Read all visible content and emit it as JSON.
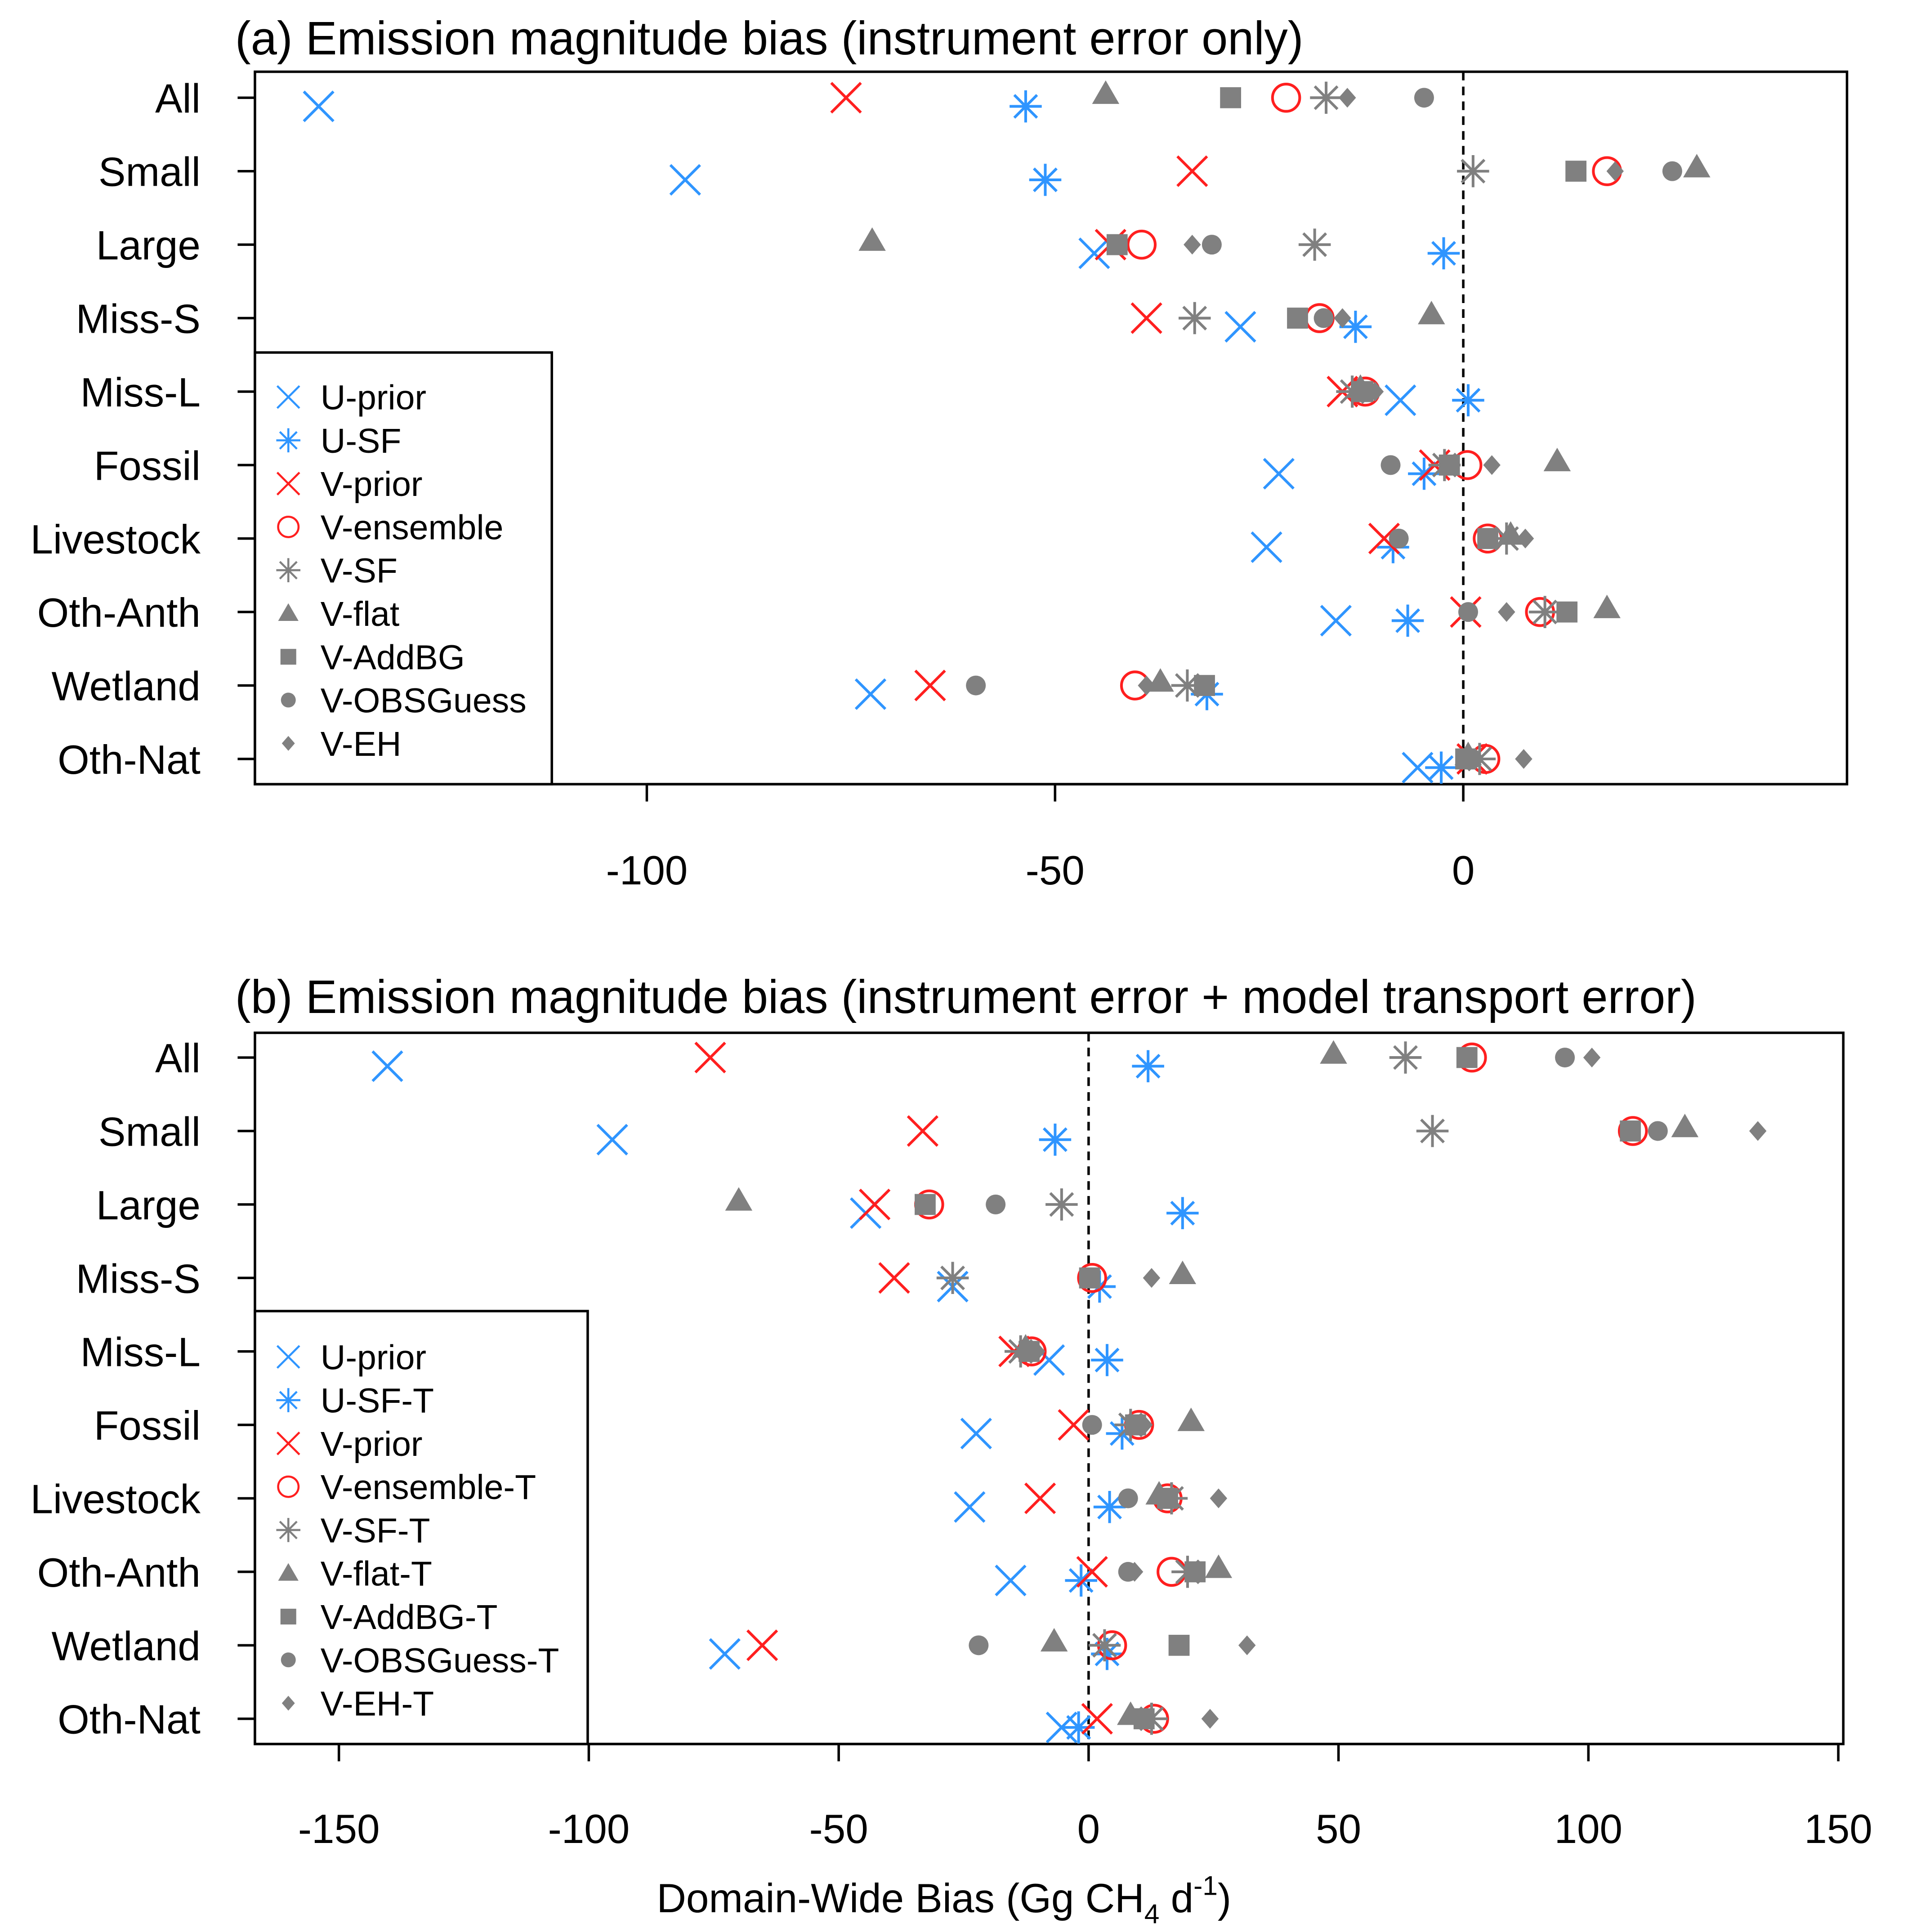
{
  "colors": {
    "blue": "#2f95ff",
    "red": "#ff1f1f",
    "gray": "#808080"
  },
  "chart_data": [
    {
      "type": "scatter",
      "title": "(a) Emission magnitude bias (instrument error only)",
      "categories": [
        "All",
        "Small",
        "Large",
        "Miss-S",
        "Miss-L",
        "Fossil",
        "Livestock",
        "Oth-Anth",
        "Wetland",
        "Oth-Nat"
      ],
      "xlim": [
        -148,
        47
      ],
      "xticks": [
        "-100",
        "-50",
        "0"
      ],
      "xtick_values": [
        -100,
        -50,
        0
      ],
      "reference_line": 0,
      "legend_position": "bottom-left",
      "series": [
        {
          "name": "U-prior",
          "marker": "x",
          "color": "blue",
          "values": [
            -140.2,
            -95.3,
            -45.2,
            -27.3,
            -7.7,
            -22.6,
            -24.1,
            -15.6,
            -72.6,
            -5.6
          ]
        },
        {
          "name": "U-SF",
          "marker": "asterisk",
          "color": "blue",
          "values": [
            -53.6,
            -51.2,
            -2.4,
            -13.2,
            0.6,
            -4.8,
            -8.6,
            -6.8,
            -31.4,
            -2.7
          ]
        },
        {
          "name": "V-prior",
          "marker": "x",
          "color": "red",
          "values": [
            -75.6,
            -33.2,
            -43.2,
            -38.8,
            -14.8,
            -3.5,
            -9.7,
            0.3,
            -65.3,
            1.1
          ]
        },
        {
          "name": "V-ensemble",
          "marker": "open-circle",
          "color": "red",
          "values": [
            -21.7,
            17.6,
            -39.4,
            -17.6,
            -12.0,
            0.5,
            3.0,
            9.4,
            -40.2,
            2.7
          ]
        },
        {
          "name": "V-SF",
          "marker": "asterisk",
          "color": "gray",
          "values": [
            -16.8,
            1.2,
            -18.2,
            -32.9,
            -13.6,
            -2.3,
            5.3,
            10.0,
            -33.8,
            2.0
          ]
        },
        {
          "name": "V-flat",
          "marker": "triangle",
          "color": "gray",
          "values": [
            -43.8,
            28.6,
            -72.4,
            -3.9,
            -12.6,
            11.5,
            5.8,
            17.6,
            -37.1,
            0.6
          ]
        },
        {
          "name": "V-AddBG",
          "marker": "square",
          "color": "gray",
          "values": [
            -28.5,
            13.8,
            -42.4,
            -20.3,
            -12.3,
            -1.7,
            3.0,
            12.7,
            -31.7,
            0.3
          ]
        },
        {
          "name": "V-OBSGuess",
          "marker": "circle",
          "color": "gray",
          "values": [
            -4.8,
            25.6,
            -30.8,
            -17.1,
            -11.7,
            -8.9,
            -7.9,
            0.6,
            -59.7,
            1.1
          ]
        },
        {
          "name": "V-EH",
          "marker": "diamond",
          "color": "gray",
          "values": [
            -14.2,
            18.6,
            -33.2,
            -14.8,
            -10.8,
            3.5,
            7.6,
            5.3,
            -38.8,
            7.4
          ]
        }
      ]
    },
    {
      "type": "scatter",
      "title": "(b) Emission magnitude bias (instrument error + model transport error)",
      "categories": [
        "All",
        "Small",
        "Large",
        "Miss-S",
        "Miss-L",
        "Fossil",
        "Livestock",
        "Oth-Anth",
        "Wetland",
        "Oth-Nat"
      ],
      "xlim": [
        -166.8,
        151
      ],
      "xticks": [
        "-150",
        "-100",
        "-50",
        "0",
        "50",
        "100",
        "150"
      ],
      "xtick_values": [
        -150,
        -100,
        -50,
        0,
        50,
        100,
        150
      ],
      "reference_line": 0,
      "legend_position": "bottom-left",
      "xlabel": {
        "main": "Domain-Wide Bias (Gg CH",
        "sub": "4",
        "mid": " d",
        "sup": "-1",
        "end": ")"
      },
      "series": [
        {
          "name": "U-prior",
          "marker": "x",
          "color": "blue",
          "values": [
            -140.3,
            -95.3,
            -44.6,
            -27.2,
            -7.9,
            -22.5,
            -23.8,
            -15.6,
            -72.8,
            -5.4
          ]
        },
        {
          "name": "U-SF-T",
          "marker": "asterisk",
          "color": "blue",
          "values": [
            11.9,
            -6.7,
            18.8,
            2.2,
            3.7,
            6.7,
            4.2,
            -1.5,
            3.7,
            -2.0
          ]
        },
        {
          "name": "V-prior",
          "marker": "x",
          "color": "red",
          "values": [
            -75.7,
            -33.2,
            -42.8,
            -38.9,
            -14.9,
            -3.0,
            -9.7,
            0.7,
            -65.3,
            1.7
          ]
        },
        {
          "name": "V-ensemble-T",
          "marker": "open-circle",
          "color": "red",
          "values": [
            76.7,
            108.9,
            -31.9,
            0.7,
            -11.4,
            10.1,
            15.8,
            16.6,
            4.7,
            13.1
          ]
        },
        {
          "name": "V-SF-T",
          "marker": "asterisk",
          "color": "gray",
          "values": [
            63.4,
            68.8,
            -5.4,
            -27.2,
            -13.6,
            8.4,
            16.6,
            19.8,
            3.2,
            12.6
          ]
        },
        {
          "name": "V-flat-T",
          "marker": "triangle",
          "color": "gray",
          "values": [
            49.0,
            119.3,
            -70.0,
            18.8,
            -12.6,
            20.5,
            14.1,
            26.0,
            -6.9,
            8.4
          ]
        },
        {
          "name": "V-AddBG-T",
          "marker": "square",
          "color": "gray",
          "values": [
            75.7,
            108.4,
            -32.7,
            0.2,
            -11.9,
            9.4,
            15.8,
            21.3,
            18.1,
            11.1
          ]
        },
        {
          "name": "V-OBSGuess-T",
          "marker": "circle",
          "color": "gray",
          "values": [
            95.3,
            113.9,
            -18.6,
            0.2,
            -11.4,
            0.7,
            7.9,
            7.9,
            -22.0,
            11.4
          ]
        },
        {
          "name": "V-EH-T",
          "marker": "diamond",
          "color": "gray",
          "values": [
            100.7,
            133.9,
            -33.2,
            12.6,
            -10.4,
            11.1,
            26.0,
            9.2,
            31.7,
            24.3
          ]
        }
      ]
    }
  ]
}
